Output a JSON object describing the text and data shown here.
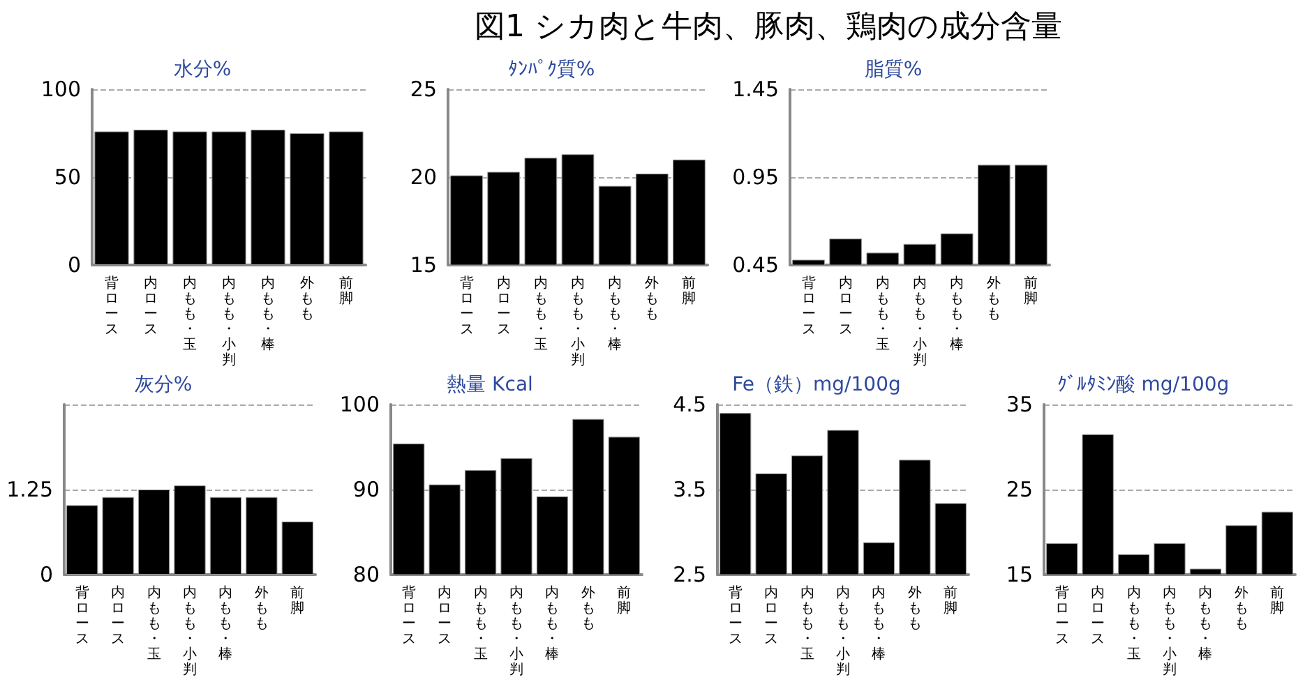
{
  "chart_data": [
    {
      "type": "bar",
      "title": "水分%",
      "annotations": [
        "図1 シカ肉と牛肉、豚肉、鶏肉の成分含量"
      ],
      "categories": [
        "背ロース",
        "内ロース",
        "内もも・玉",
        "内もも・小判",
        "内もも・棒",
        "外もも",
        "前脚"
      ],
      "values": [
        76,
        77,
        76,
        76,
        77,
        75,
        76
      ],
      "color": "#000000",
      "ylim": [
        0,
        100
      ],
      "yticks": [
        0,
        50,
        100
      ],
      "grid": true
    },
    {
      "type": "bar",
      "title": "ﾀﾝﾊﾟｸ質%",
      "categories": [
        "背ロース",
        "内ロース",
        "内もも・玉",
        "内もも・小判",
        "内もも・棒",
        "外もも",
        "前脚"
      ],
      "values": [
        20.1,
        20.3,
        21.1,
        21.3,
        19.5,
        20.2,
        21
      ],
      "color": "#000000",
      "ylim": [
        15,
        25
      ],
      "yticks": [
        15,
        20,
        25
      ],
      "grid": true
    },
    {
      "type": "bar",
      "title": "脂質%",
      "categories": [
        "背ロース",
        "内ロース",
        "内もも・玉",
        "内もも・小判",
        "内もも・棒",
        "外もも",
        "前脚"
      ],
      "values": [
        0.48,
        0.6,
        0.52,
        0.57,
        0.63,
        1.02,
        1.02
      ],
      "color": "#000000",
      "ylim": [
        0.45,
        1.45
      ],
      "yticks": [
        0.45,
        0.95,
        1.45
      ],
      "grid": true
    },
    {
      "type": "bar",
      "title": "灰分%",
      "categories": [
        "背ロース",
        "内ロース",
        "内もも・玉",
        "内もも・小判",
        "内もも・棒",
        "外もも",
        "前脚"
      ],
      "values": [
        1.02,
        1.14,
        1.25,
        1.31,
        1.14,
        1.14,
        0.78
      ],
      "color": "#000000",
      "ylim": [
        0,
        2.5
      ],
      "yticks": [
        0,
        1.25,
        {
          "value": 2.5,
          "label": null
        }
      ],
      "grid": true
    },
    {
      "type": "bar",
      "title": "熱量 Kcal",
      "categories": [
        "背ロース",
        "内ロース",
        "内もも・玉",
        "内もも・小判",
        "内もも・棒",
        "外もも",
        "前脚"
      ],
      "values": [
        95.4,
        90.6,
        92.3,
        93.7,
        89.2,
        98.3,
        96.2
      ],
      "color": "#000000",
      "ylim": [
        80,
        100
      ],
      "yticks": [
        80,
        90,
        100
      ],
      "grid": true
    },
    {
      "type": "bar",
      "title": "Fe（鉄）mg/100g",
      "categories": [
        "背ロース",
        "内ロース",
        "内もも・玉",
        "内もも・小判",
        "内もも・棒",
        "外もも",
        "前脚"
      ],
      "values": [
        4.4,
        3.69,
        3.9,
        4.2,
        2.88,
        3.85,
        3.34
      ],
      "color": "#000000",
      "ylim": [
        2.5,
        4.5
      ],
      "yticks": [
        2.5,
        3.5,
        4.5
      ],
      "grid": true
    },
    {
      "type": "bar",
      "title": "ｸﾞﾙﾀﾐﾝ酸 mg/100g",
      "categories": [
        "背ロース",
        "内ロース",
        "内もも・玉",
        "内もも・小判",
        "内もも・棒",
        "外もも",
        "前脚"
      ],
      "values": [
        18.7,
        31.5,
        17.4,
        18.7,
        15.7,
        20.8,
        22.4
      ],
      "color": "#000000",
      "ylim": [
        15,
        35
      ],
      "yticks": [
        15,
        25,
        35
      ],
      "grid": true
    }
  ]
}
